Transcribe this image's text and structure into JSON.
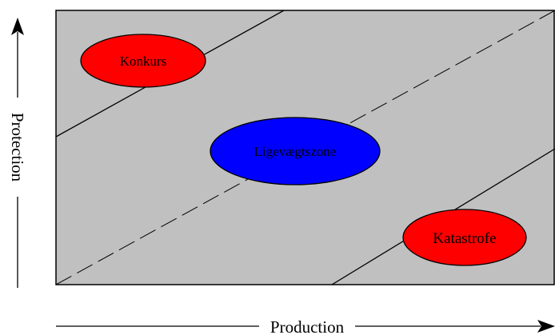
{
  "diagram": {
    "zones": {
      "bankruptcy": "Konkurs",
      "equilibrium": "Ligevægtszone",
      "catastrophe": "Katastrofe"
    },
    "axes": {
      "x_label": "Production",
      "y_label": "Protection"
    },
    "colors": {
      "plot_background": "#c0c0c0",
      "bankruptcy_fill": "#ff0000",
      "equilibrium_fill": "#0000ff",
      "catastrophe_fill": "#ff0000",
      "line_color": "#000000"
    }
  }
}
